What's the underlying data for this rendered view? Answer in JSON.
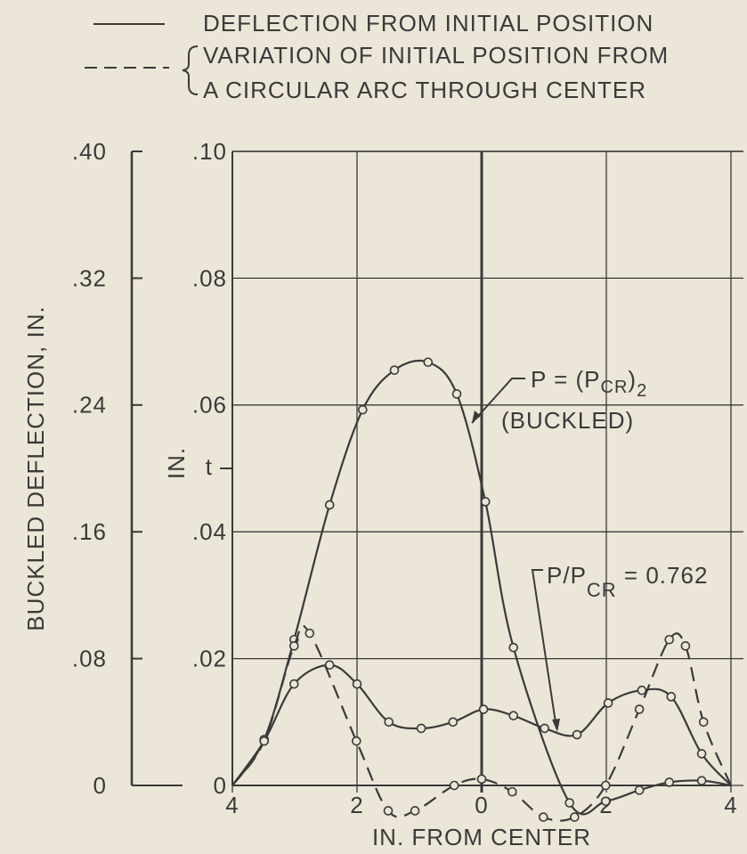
{
  "chart_data": {
    "type": "line",
    "legend": [
      {
        "label": [
          "DEFLECTION FROM INITIAL POSITION"
        ],
        "style": "solid"
      },
      {
        "label": [
          "VARIATION OF INITIAL POSITION FROM",
          "A CIRCULAR ARC THROUGH CENTER"
        ],
        "style": "dashed"
      }
    ],
    "xlabel": "IN. FROM CENTER",
    "ylabel": "IN.",
    "y2label": "BUCKLED DEFLECTION, IN.",
    "xlim": [
      -4,
      4
    ],
    "xticks": [
      {
        "value": -4,
        "label": "4"
      },
      {
        "value": -2,
        "label": "2"
      },
      0,
      2,
      4
    ],
    "ylim": [
      0,
      0.1
    ],
    "yticks": [
      0,
      {
        "value": 0.02,
        "label": ".02"
      },
      {
        "value": 0.04,
        "label": ".04"
      },
      {
        "value": 0.06,
        "label": ".06"
      },
      {
        "value": 0.08,
        "label": ".08"
      },
      {
        "value": 0.1,
        "label": ".10"
      }
    ],
    "y2lim": [
      0,
      0.4
    ],
    "y2ticks": [
      0,
      {
        "value": 0.08,
        "label": ".08"
      },
      {
        "value": 0.16,
        "label": ".16"
      },
      {
        "value": 0.24,
        "label": ".24"
      },
      {
        "value": 0.32,
        "label": ".32"
      },
      {
        "value": 0.4,
        "label": ".40"
      }
    ],
    "grid": true,
    "color": "#3a3a3a",
    "series": [
      {
        "style": "solid",
        "axis": "y2",
        "color": "#3a3a3a",
        "x": [
          -4,
          -3.49,
          -3.01,
          -2.44,
          -1.91,
          -1.4,
          -0.86,
          -0.4,
          0.06,
          0.51,
          1.41,
          1.99,
          2.53,
          3.01,
          3.53,
          4
        ],
        "values": [
          0,
          0.029,
          0.092,
          0.177,
          0.237,
          0.262,
          0.267,
          0.247,
          0.179,
          0.087,
          -0.011,
          -0.01,
          -0.003,
          0.002,
          0.003,
          0
        ]
      },
      {
        "style": "solid",
        "color": "#3a3a3a",
        "x": [
          -4,
          -3.49,
          -3.01,
          -2.44,
          -2.0,
          -1.49,
          -0.97,
          -0.46,
          0.03,
          0.51,
          1.01,
          1.53,
          2.03,
          2.57,
          3.04,
          3.53,
          4
        ],
        "values": [
          0,
          0.007,
          0.016,
          0.019,
          0.016,
          0.01,
          0.009,
          0.01,
          0.012,
          0.011,
          0.009,
          0.008,
          0.013,
          0.015,
          0.014,
          0.005,
          0
        ]
      },
      {
        "style": "dashed",
        "color": "#3a3a3a",
        "x": [
          -4,
          -3.49,
          -3.01,
          -2.76,
          -2.01,
          -1.5,
          -1.07,
          -0.44,
          0.0,
          0.49,
          0.99,
          1.49,
          1.99,
          2.53,
          3.01,
          3.27,
          3.56,
          4
        ],
        "values": [
          0,
          0.007,
          0.022,
          0.024,
          0.007,
          -0.004,
          -0.004,
          0,
          0.001,
          -0.001,
          -0.005,
          -0.005,
          0,
          0.012,
          0.023,
          0.022,
          0.01,
          0
        ]
      }
    ],
    "annotations": [
      {
        "parts": [
          "P = (P",
          "CR",
          ")",
          "2"
        ],
        "line2": "(BUCKLED)"
      },
      {
        "parts": [
          "P/P",
          "CR",
          " = 0.762"
        ]
      },
      {
        "text": "t",
        "value": 0.05
      }
    ]
  }
}
